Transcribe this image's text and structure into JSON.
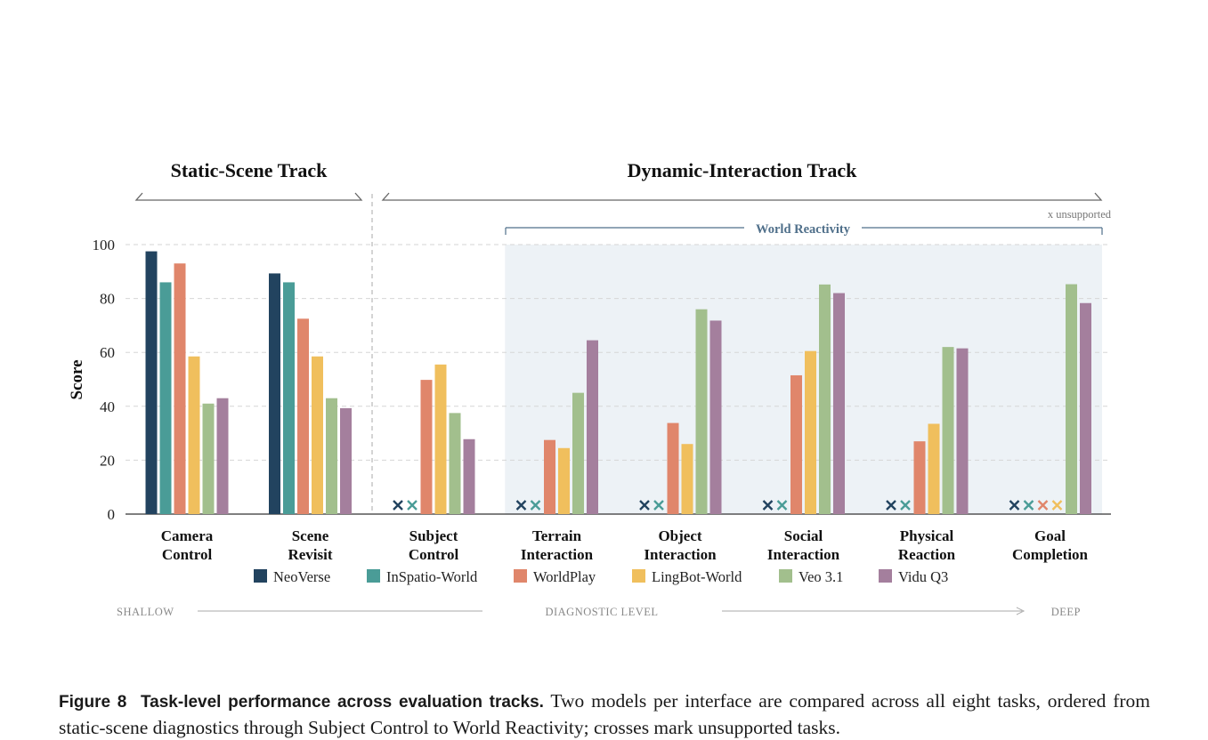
{
  "chart_data": {
    "type": "bar",
    "ylabel": "Score",
    "ylim": [
      0,
      100
    ],
    "yticks": [
      0,
      20,
      40,
      60,
      80,
      100
    ],
    "grid": true,
    "legend_placement": "bottom",
    "categories": [
      [
        "Camera",
        "Control"
      ],
      [
        "Scene",
        "Revisit"
      ],
      [
        "Subject",
        "Control"
      ],
      [
        "Terrain",
        "Interaction"
      ],
      [
        "Object",
        "Interaction"
      ],
      [
        "Social",
        "Interaction"
      ],
      [
        "Physical",
        "Reaction"
      ],
      [
        "Goal",
        "Completion"
      ]
    ],
    "series": [
      {
        "name": "NeoVerse",
        "color": "#22435f",
        "values": [
          97.5,
          89.3,
          null,
          null,
          null,
          null,
          null,
          null
        ]
      },
      {
        "name": "InSpatio-World",
        "color": "#4a9c97",
        "values": [
          86,
          86,
          null,
          null,
          null,
          null,
          null,
          null
        ]
      },
      {
        "name": "WorldPlay",
        "color": "#e0866b",
        "values": [
          93,
          72.5,
          49.8,
          27.5,
          33.8,
          51.5,
          27,
          null
        ]
      },
      {
        "name": "LingBot-World",
        "color": "#f0bf5d",
        "values": [
          58.5,
          58.5,
          55.5,
          24.5,
          26,
          60.5,
          33.5,
          null
        ]
      },
      {
        "name": "Veo 3.1",
        "color": "#a2bf8d",
        "values": [
          41,
          43,
          37.5,
          45,
          76,
          85.2,
          62,
          85.3
        ]
      },
      {
        "name": "Vidu Q3",
        "color": "#a47f9d",
        "values": [
          43,
          39.3,
          27.8,
          64.5,
          71.8,
          82,
          61.5,
          78.3
        ]
      }
    ],
    "tracks": [
      {
        "label": "Static-Scene Track",
        "from_category": 0,
        "to_category": 1
      },
      {
        "label": "Dynamic-Interaction Track",
        "from_category": 2,
        "to_category": 7
      }
    ],
    "region": {
      "label": "World Reactivity",
      "from_category": 3,
      "to_category": 7
    },
    "unsupported_note": "x  unsupported",
    "diagnostic_axis": {
      "left": "SHALLOW",
      "center": "DIAGNOSTIC LEVEL",
      "right": "DEEP"
    },
    "colors": {
      "axis": "#555555",
      "grid": "#d6d6d6",
      "region_fill": "#edf2f6",
      "region_line": "#4f6f8a"
    }
  },
  "caption": {
    "label": "Figure 8",
    "title": "Task-level performance across evaluation tracks.",
    "text": "Two models per interface are compared across all eight tasks, ordered from static-scene diagnostics through Subject Control to World Reactivity; crosses mark unsupported tasks."
  }
}
